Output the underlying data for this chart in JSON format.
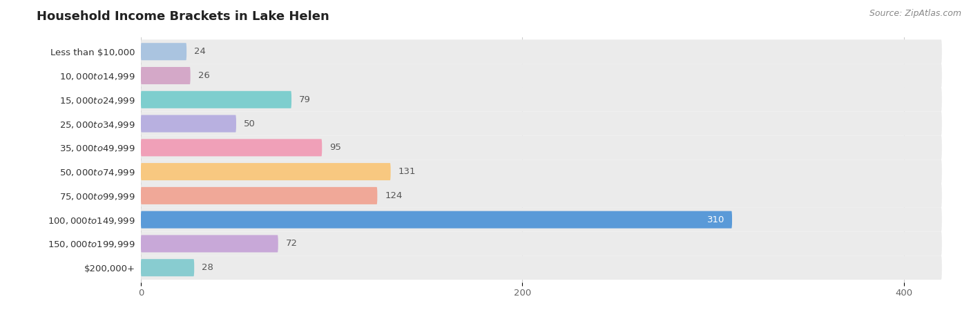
{
  "title": "Household Income Brackets in Lake Helen",
  "source": "Source: ZipAtlas.com",
  "categories": [
    "Less than $10,000",
    "$10,000 to $14,999",
    "$15,000 to $24,999",
    "$25,000 to $34,999",
    "$35,000 to $49,999",
    "$50,000 to $74,999",
    "$75,000 to $99,999",
    "$100,000 to $149,999",
    "$150,000 to $199,999",
    "$200,000+"
  ],
  "values": [
    24,
    26,
    79,
    50,
    95,
    131,
    124,
    310,
    72,
    28
  ],
  "bar_colors": [
    "#aac4e0",
    "#d4a8c8",
    "#7ecece",
    "#b8b0e0",
    "#f0a0b8",
    "#f8c880",
    "#f0a898",
    "#5a9ad8",
    "#c8a8d8",
    "#88ccd0"
  ],
  "bar_background_color": "#ebebeb",
  "xlim_data": [
    0,
    420
  ],
  "xticks": [
    0,
    200,
    400
  ],
  "title_fontsize": 13,
  "label_fontsize": 9.5,
  "value_fontsize": 9.5,
  "source_fontsize": 9
}
